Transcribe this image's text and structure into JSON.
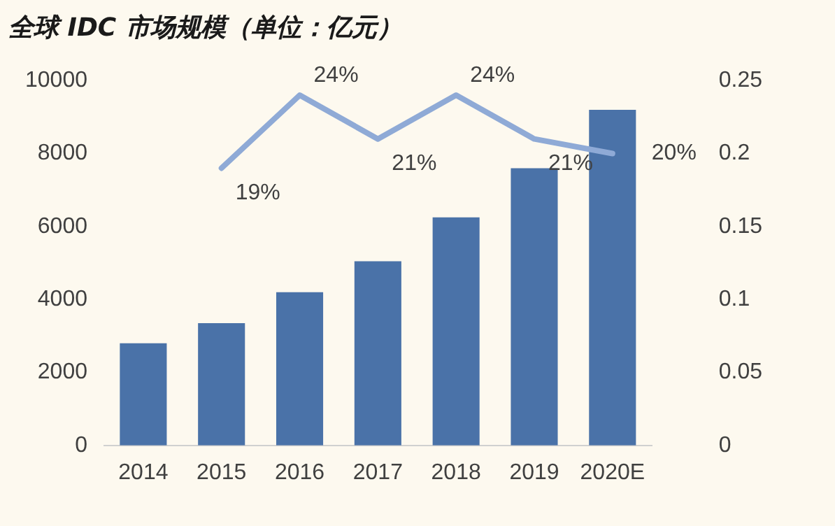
{
  "chart_data": {
    "type": "bar",
    "title": "全球 IDC 市场规模（单位：亿元）",
    "categories": [
      "2014",
      "2015",
      "2016",
      "2017",
      "2018",
      "2019",
      "2020E"
    ],
    "series": [
      {
        "color": "#4a72a8",
        "values": [
          2800,
          3350,
          4200,
          5050,
          6250,
          7600,
          9200
        ]
      },
      {
        "type": "line",
        "axis": "y2",
        "color": "#8faad6",
        "values": [
          null,
          0.19,
          0.24,
          0.21,
          0.24,
          0.21,
          0.2
        ],
        "value_labels": [
          null,
          "19%",
          "24%",
          "21%",
          "24%",
          "21%",
          "20%"
        ]
      }
    ],
    "ylim": [
      0,
      10000
    ],
    "yticks": [
      0,
      2000,
      4000,
      6000,
      8000,
      10000
    ],
    "y2lim": [
      0,
      0.25
    ],
    "y2ticks": [
      0,
      0.05,
      0.1,
      0.15,
      0.2,
      0.25
    ],
    "grid": false,
    "legend": false,
    "marker": "none"
  }
}
